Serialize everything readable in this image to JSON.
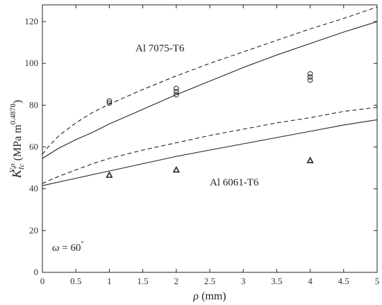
{
  "chart_data": {
    "type": "line",
    "xlabel": {
      "symbol": "ρ",
      "unit": " (mm)"
    },
    "ylabel": {
      "symbol": "K",
      "sub": "Ic",
      "sup": "V,ρ",
      "unit": " (MPa m",
      "unit_sup": "0.4878",
      "unit_close": ")"
    },
    "xlim": [
      0,
      5
    ],
    "ylim": [
      0,
      128
    ],
    "xticks": [
      0,
      0.5,
      1,
      1.5,
      2,
      2.5,
      3,
      3.5,
      4,
      4.5,
      5
    ],
    "xtick_labels": [
      "0",
      "0.5",
      "1",
      "1.5",
      "2",
      "2.5",
      "3",
      "3.5",
      "4",
      "4.5",
      "5"
    ],
    "yticks": [
      0,
      20,
      40,
      60,
      80,
      100,
      120
    ],
    "ytick_labels": [
      "0",
      "20",
      "40",
      "60",
      "80",
      "100",
      "120"
    ],
    "grid": false,
    "legend": "none",
    "annotations": {
      "al7075": {
        "text": "Al 7075-T6",
        "x": 1.4,
        "y": 108.5
      },
      "al6061": {
        "text": "Al 6061-T6",
        "x": 2.5,
        "y": 44.5
      },
      "omega": {
        "symbol": "ω",
        "rest": " = 60",
        "sup": "°",
        "x": 0.12,
        "y": 10
      }
    },
    "series": [
      {
        "group": "Al 7075-T6",
        "kind": "solid-line",
        "color": "#222222",
        "x": [
          0,
          0.25,
          0.5,
          0.75,
          1,
          1.5,
          2,
          2.5,
          3,
          3.5,
          4,
          4.5,
          5
        ],
        "y": [
          54.5,
          59.5,
          63.5,
          67.0,
          71.0,
          78.0,
          85.0,
          91.5,
          98.0,
          104.0,
          109.5,
          115.0,
          120.0
        ]
      },
      {
        "group": "Al 7075-T6",
        "kind": "dashed-line",
        "color": "#222222",
        "x": [
          0,
          0.1,
          0.25,
          0.5,
          0.75,
          1,
          1.5,
          2,
          2.5,
          3,
          3.5,
          4,
          4.5,
          5
        ],
        "y": [
          56.5,
          60.5,
          65.5,
          71.5,
          76.5,
          80.5,
          87.5,
          94.0,
          100.0,
          105.5,
          111.0,
          116.5,
          121.5,
          127.0
        ]
      },
      {
        "group": "Al 6061-T6",
        "kind": "solid-line",
        "color": "#222222",
        "x": [
          0,
          0.5,
          1,
          1.5,
          2,
          2.5,
          3,
          3.5,
          4,
          4.5,
          5
        ],
        "y": [
          41.5,
          45.0,
          48.5,
          52.0,
          55.5,
          58.5,
          61.5,
          64.5,
          67.5,
          70.5,
          73.0
        ]
      },
      {
        "group": "Al 6061-T6",
        "kind": "dashed-line",
        "color": "#222222",
        "x": [
          0,
          0.1,
          0.25,
          0.5,
          0.75,
          1,
          1.5,
          2,
          2.5,
          3,
          3.5,
          4,
          4.5,
          5
        ],
        "y": [
          42.5,
          44.0,
          46.0,
          49.0,
          52.0,
          54.5,
          58.5,
          62.0,
          65.5,
          68.5,
          71.5,
          74.0,
          77.0,
          79.0
        ]
      },
      {
        "group": "Al 7075-T6",
        "kind": "circle-markers",
        "color": "#222222",
        "x": [
          1,
          1,
          2,
          2,
          2,
          4,
          4,
          4
        ],
        "y": [
          81.0,
          82.0,
          85.0,
          86.5,
          88.0,
          92.0,
          93.5,
          95.0
        ]
      },
      {
        "group": "Al 6061-T6",
        "kind": "triangle-markers",
        "color": "#222222",
        "x": [
          1,
          2,
          4
        ],
        "y": [
          46.5,
          49.0,
          53.5
        ]
      }
    ]
  }
}
